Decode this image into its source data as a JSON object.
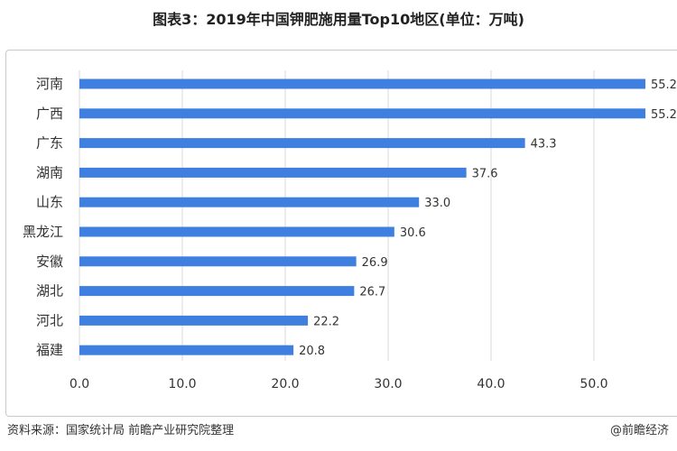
{
  "title": "图表3：2019年中国钾肥施用量Top10地区(单位：万吨)",
  "source": "资料来源：国家统计局 前瞻产业研究院整理",
  "brand": "@前瞻经济",
  "colors": {
    "bar": "#3f7fe0",
    "grid": "#d9d9d9"
  },
  "chart_data": {
    "type": "bar",
    "orientation": "horizontal",
    "title": "图表3：2019年中国钾肥施用量Top10地区(单位：万吨)",
    "categories": [
      "河南",
      "广西",
      "广东",
      "湖南",
      "山东",
      "黑龙江",
      "安徽",
      "湖北",
      "河北",
      "福建"
    ],
    "values": [
      55.2,
      55.2,
      43.3,
      37.6,
      33.0,
      30.6,
      26.9,
      26.7,
      22.2,
      20.8
    ],
    "value_labels": [
      "55.2",
      "55.2",
      "43.3",
      "37.6",
      "33.0",
      "30.6",
      "26.9",
      "26.7",
      "22.2",
      "20.8"
    ],
    "xlim": [
      0,
      55
    ],
    "xticks": [
      0,
      10,
      20,
      30,
      40,
      50
    ],
    "xtick_labels": [
      "0.0",
      "10.0",
      "20.0",
      "30.0",
      "40.0",
      "50.0"
    ],
    "grid": "vertical",
    "legend": "none"
  }
}
